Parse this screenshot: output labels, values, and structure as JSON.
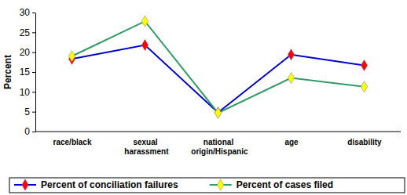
{
  "chart_data": {
    "type": "line",
    "y_label": "Percent",
    "categories": [
      "race/black",
      "sexual harassment",
      "national origin/Hispanic",
      "age",
      "disability"
    ],
    "series": [
      {
        "name": "Percent of conciliation failures",
        "color": "#0000cc",
        "marker": "diamond",
        "values": [
          18.3,
          21.8,
          4.8,
          19.4,
          16.7
        ]
      },
      {
        "name": "Percent of cases filed",
        "color": "#339966",
        "marker": "diamond",
        "values": [
          19,
          27.8,
          4.7,
          13.5,
          11.3
        ]
      }
    ],
    "ylim": [
      0,
      30
    ],
    "yticks": [
      0,
      5,
      10,
      15,
      20,
      25,
      30
    ],
    "grid": false,
    "legend": "bottom"
  }
}
